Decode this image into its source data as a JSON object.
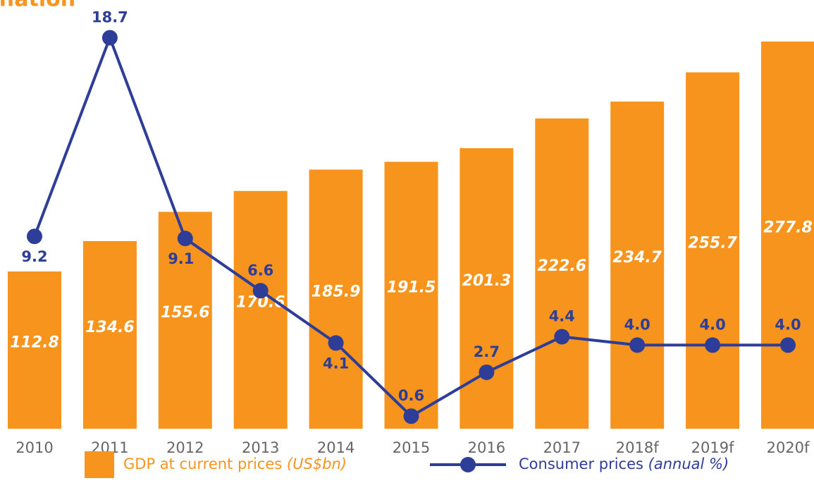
{
  "chart_data": {
    "type": "bar-line",
    "title": "flation",
    "categories": [
      "2010",
      "2011",
      "2012",
      "2013",
      "2014",
      "2015",
      "2016",
      "2017",
      "2018f",
      "2019f",
      "2020f"
    ],
    "series": [
      {
        "name": "GDP at current prices",
        "unit": "(US$bn)",
        "type": "bar",
        "color": "#f7941d",
        "values": [
          112.8,
          134.6,
          155.6,
          170.6,
          185.9,
          191.5,
          201.3,
          222.6,
          234.7,
          255.7,
          277.8
        ]
      },
      {
        "name": "Consumer prices",
        "unit": "(annual %)",
        "type": "line",
        "axis": "y2",
        "color": "#2e3d98",
        "values": [
          9.2,
          18.7,
          9.1,
          6.6,
          4.1,
          0.6,
          2.7,
          4.4,
          4.0,
          4.0,
          4.0
        ],
        "value_labels": [
          "9.2",
          "18.7",
          "9.1",
          "6.6",
          "4.1",
          "0.6",
          "2.7",
          "4.4",
          "4.0",
          "4.0",
          "4.0"
        ]
      }
    ],
    "ylim": [
      0,
      300
    ],
    "y2lim": [
      0,
      20
    ]
  }
}
